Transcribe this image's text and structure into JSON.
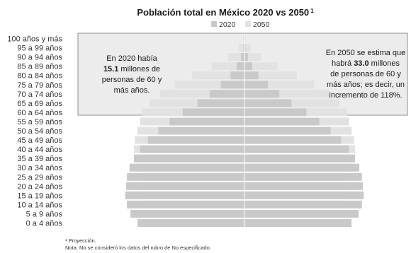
{
  "chart_data": {
    "type": "bar",
    "subtype": "population-pyramid-overlay",
    "title": "Población total en México 2020 vs 2050",
    "title_superscript": "1",
    "categories": [
      "100 años y más",
      "95 a 99 años",
      "90 a 94 años",
      "85 a 89 años",
      "80 a 84 años",
      "75 a 79 años",
      "70 a 74 años",
      "65 a 69 años",
      "60 a 64 años",
      "55 a 59 años",
      "50 a 54 años",
      "45 a 49 años",
      "40 a 44 años",
      "35 a 39 años",
      "30 a 34 años",
      "25 a 29 años",
      "20 a 24 años",
      "15 a 19 años",
      "10 a 14 años",
      "5 a 9 años",
      "0 a 4 años"
    ],
    "series": [
      {
        "name": "2020",
        "color": "#c9c9c9",
        "values": [
          0.02,
          0.06,
          0.2,
          0.45,
          0.8,
          1.35,
          2.0,
          2.7,
          3.55,
          4.3,
          4.95,
          5.55,
          6.0,
          6.35,
          6.6,
          6.75,
          6.8,
          6.85,
          6.75,
          6.55,
          6.15
        ]
      },
      {
        "name": "2050",
        "color": "#e2e2e2",
        "values": [
          0.08,
          0.35,
          0.95,
          1.9,
          3.0,
          4.0,
          4.85,
          5.45,
          5.9,
          6.0,
          6.15,
          6.3,
          6.35,
          6.3,
          6.2,
          6.05,
          5.95,
          5.85,
          5.75,
          5.6,
          5.45
        ]
      }
    ],
    "legend": [
      "2020",
      "2050"
    ],
    "legend_position": "top-center",
    "highlight_group_range": [
      "60 a 64 años",
      "100 años y más"
    ],
    "annotations": {
      "left": [
        "En 2020 había",
        "15.1 millones de",
        "personas de 60 y",
        "más años."
      ],
      "left_bold": "15.1",
      "right": [
        "En 2050 se estima que",
        "habrá 33.0 millones",
        "de personas de 60 y",
        "más años; es decir, un",
        "incremento de 118%."
      ],
      "right_bold": "33.0"
    },
    "footnotes": [
      "¹ Proyección.",
      "Nota: No se consideró los datos del rubro de No especificado."
    ],
    "grid": false
  },
  "colors": {
    "bar_2020": "#c9c9c9",
    "bar_2050": "#e2e2e2",
    "highlight_fill": "#ececec",
    "highlight_border": "#777777",
    "center_line": "#ffffff"
  }
}
